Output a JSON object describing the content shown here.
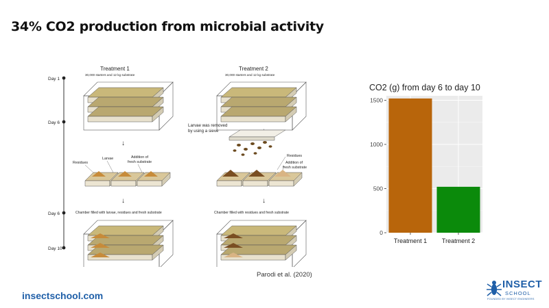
{
  "slide": {
    "title": "34% CO2 production from microbial activity",
    "footer_link": "insectschool.com",
    "citation": "Parodi et al. (2020)"
  },
  "logo": {
    "name": "INSECT",
    "sub": "SCHOOL",
    "tagline": "FOUNDED BY INSECT ENGINEERS",
    "color": "#1f5fa8"
  },
  "diagram": {
    "timeline": [
      "Day 1",
      "Day 6",
      "Day 6",
      "Day 10"
    ],
    "treatment1": {
      "title": "Treatment 1",
      "subtitle": "30,000 starters and 12 kg substrate",
      "label_residues": "Residues",
      "label_larvae": "Larvae",
      "label_addition_1": "Addition of",
      "label_addition_2": "fresh substrate",
      "chamber_caption": "Chamber filled with larvae, residues and fresh substrate"
    },
    "treatment2": {
      "title": "Treatment 2",
      "subtitle": "30,000 starters and 12 kg substrate",
      "larvae_removed_1": "Larvae was removed",
      "larvae_removed_2": "by using a sieve",
      "label_residues": "Residues",
      "label_addition_1": "Addition of",
      "label_addition_2": "fresh substrate",
      "chamber_caption": "Chamber filled with residues and fresh substrate"
    }
  },
  "chart_data": {
    "type": "bar",
    "title": "CO2 (g) from day 6 to day 10",
    "categories": [
      "Treatment 1",
      "Treatment 2"
    ],
    "values": [
      1520,
      520
    ],
    "colors": [
      "#b8650b",
      "#0b8a0b"
    ],
    "ylim": [
      0,
      1550
    ],
    "yticks": [
      0,
      500,
      1000,
      1500
    ],
    "grid": true,
    "legend": "none",
    "background": "#ebebeb"
  }
}
